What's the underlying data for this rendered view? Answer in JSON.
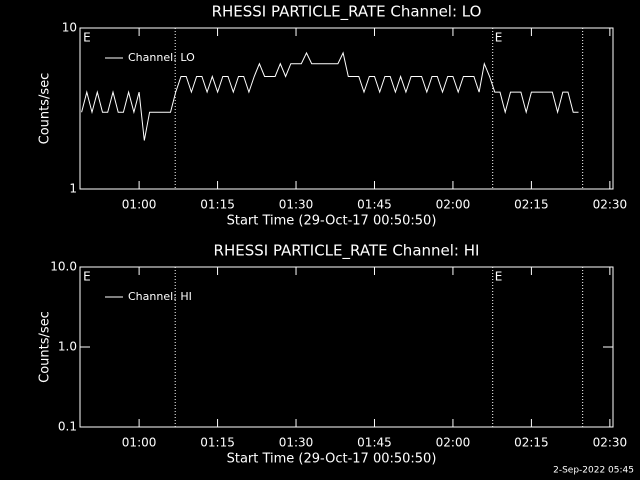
{
  "chart_data": [
    {
      "type": "line",
      "title": "RHESSI PARTICLE_RATE Channel: LO",
      "xlabel": "Start Time (29-Oct-17 00:50:50)",
      "ylabel": "Counts/sec",
      "x": [
        49,
        50,
        51,
        52,
        53,
        54,
        55,
        56,
        57,
        58,
        59,
        60,
        61,
        62,
        63,
        64,
        65,
        66,
        67,
        68,
        69,
        70,
        71,
        72,
        73,
        74,
        75,
        76,
        77,
        78,
        79,
        80,
        81,
        82,
        83,
        84,
        85,
        86,
        87,
        88,
        89,
        90,
        91,
        92,
        93,
        94,
        95,
        96,
        97,
        98,
        99,
        100,
        101,
        102,
        103,
        104,
        105,
        106,
        107,
        108,
        109,
        110,
        111,
        112,
        113,
        114,
        115,
        116,
        117,
        118,
        119,
        120,
        121,
        122,
        123,
        124,
        125,
        126,
        127,
        128,
        129,
        130,
        131,
        132,
        133,
        134,
        135,
        136,
        137,
        138,
        139,
        140,
        141,
        142,
        143,
        144
      ],
      "series": [
        {
          "name": "Channel: LO",
          "color": "#ffffff",
          "values": [
            3,
            4,
            3,
            4,
            3,
            3,
            4,
            3,
            3,
            4,
            3,
            4,
            2,
            3,
            3,
            3,
            3,
            3,
            4,
            5,
            5,
            4,
            5,
            5,
            4,
            5,
            4,
            5,
            5,
            4,
            5,
            5,
            4,
            5,
            6,
            5,
            5,
            5,
            6,
            5,
            6,
            6,
            6,
            7,
            6,
            6,
            6,
            6,
            6,
            6,
            7,
            5,
            5,
            5,
            4,
            5,
            5,
            4,
            5,
            5,
            4,
            5,
            4,
            5,
            5,
            5,
            4,
            5,
            5,
            4,
            5,
            5,
            4,
            5,
            5,
            5,
            4,
            6,
            5,
            4,
            4,
            3,
            4,
            4,
            4,
            3,
            4,
            4,
            4,
            4,
            4,
            3,
            4,
            4,
            3,
            3
          ]
        }
      ],
      "xlim": [
        48.7,
        150.6
      ],
      "xticks": [
        {
          "value": 60,
          "label": "01:00"
        },
        {
          "value": 75,
          "label": "01:15"
        },
        {
          "value": 90,
          "label": "01:30"
        },
        {
          "value": 105,
          "label": "01:45"
        },
        {
          "value": 120,
          "label": "02:00"
        },
        {
          "value": 135,
          "label": "02:15"
        },
        {
          "value": 150,
          "label": "02:30"
        }
      ],
      "ylim": [
        1,
        10
      ],
      "yticks": [
        1,
        10
      ],
      "log_y": true,
      "vlines": [
        66.9,
        127.6,
        144.8
      ],
      "annotations": [
        {
          "x": 49.3,
          "text": "E"
        },
        {
          "x": 128,
          "text": "E"
        }
      ],
      "legend": "upper left"
    },
    {
      "type": "line",
      "title": "RHESSI PARTICLE_RATE Channel: HI",
      "xlabel": "Start Time (29-Oct-17 00:50:50)",
      "ylabel": "Counts/sec",
      "x": [],
      "series": [
        {
          "name": "Channel: HI",
          "color": "#ffffff",
          "values": []
        }
      ],
      "xlim": [
        48.7,
        150.6
      ],
      "xticks": [
        {
          "value": 60,
          "label": "01:00"
        },
        {
          "value": 75,
          "label": "01:15"
        },
        {
          "value": 90,
          "label": "01:30"
        },
        {
          "value": 105,
          "label": "01:45"
        },
        {
          "value": 120,
          "label": "02:00"
        },
        {
          "value": 135,
          "label": "02:15"
        },
        {
          "value": 150,
          "label": "02:30"
        }
      ],
      "ylim": [
        0.1,
        10
      ],
      "yticks": [
        {
          "value": 0.1,
          "label": "0.1"
        },
        {
          "value": 1,
          "label": "1.0"
        },
        {
          "value": 10,
          "label": "10.0"
        }
      ],
      "log_y": true,
      "vlines": [
        66.9,
        127.6,
        144.8
      ],
      "annotations": [
        {
          "x": 49.3,
          "text": "E"
        },
        {
          "x": 128,
          "text": "E"
        }
      ],
      "legend": "upper left"
    }
  ],
  "footer": "2-Sep-2022 05:45"
}
